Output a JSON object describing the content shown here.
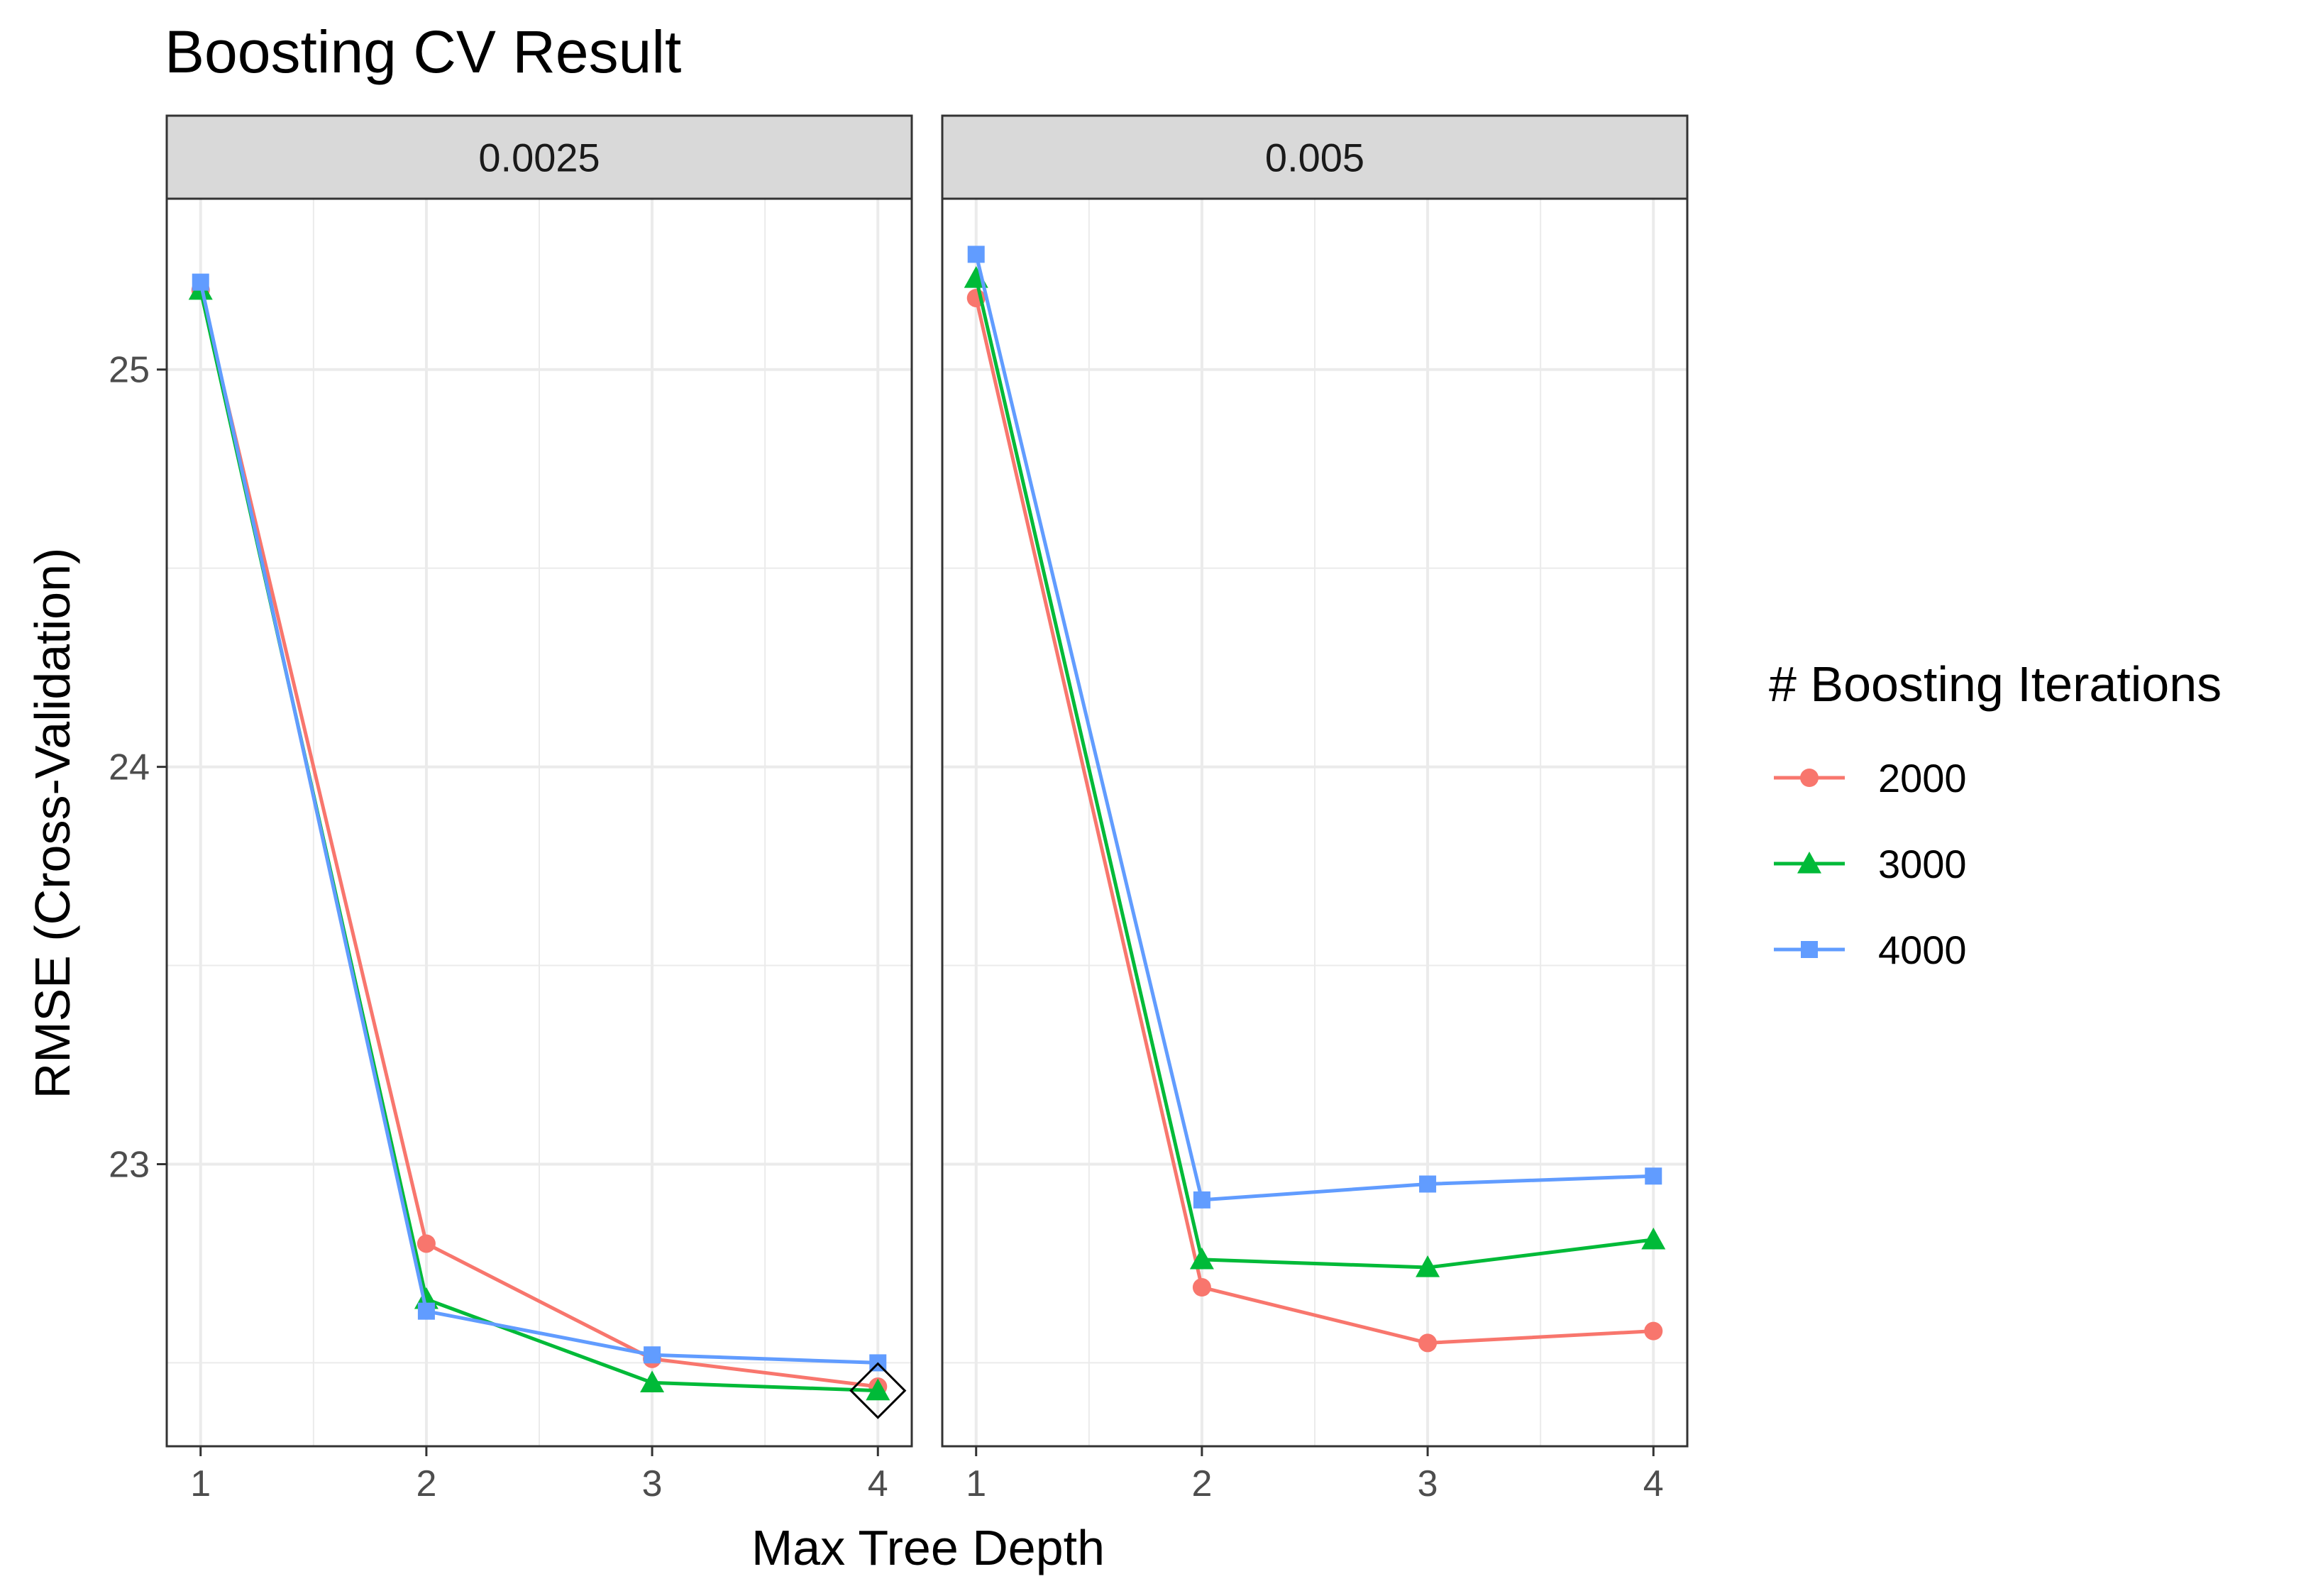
{
  "chart_data": {
    "type": "line",
    "title": "Boosting CV Result",
    "xlabel": "Max Tree Depth",
    "ylabel": "RMSE (Cross-Validation)",
    "x": [
      1,
      2,
      3,
      4
    ],
    "x_ticks": [
      "1",
      "2",
      "3",
      "4"
    ],
    "y_ticks": [
      23,
      24,
      25
    ],
    "ylim": [
      22.29,
      25.43
    ],
    "xlim": [
      0.85,
      4.15
    ],
    "grid": true,
    "legend": {
      "title": "# Boosting Iterations",
      "position": "right"
    },
    "series_styles": [
      {
        "name": "2000",
        "color": "#F8766D",
        "marker": "circle"
      },
      {
        "name": "3000",
        "color": "#00BA38",
        "marker": "triangle"
      },
      {
        "name": "4000",
        "color": "#619CFF",
        "marker": "square"
      }
    ],
    "panels": [
      {
        "label": "0.0025",
        "series": [
          {
            "name": "2000",
            "values": [
              25.2,
              22.8,
              22.51,
              22.44
            ]
          },
          {
            "name": "3000",
            "values": [
              25.2,
              22.66,
              22.45,
              22.43
            ]
          },
          {
            "name": "4000",
            "values": [
              25.22,
              22.63,
              22.52,
              22.5
            ]
          }
        ],
        "highlight": {
          "x": 4,
          "y": 22.43,
          "marker": "diamond"
        }
      },
      {
        "label": "0.005",
        "series": [
          {
            "name": "2000",
            "values": [
              25.18,
              22.69,
              22.55,
              22.58
            ]
          },
          {
            "name": "3000",
            "values": [
              25.23,
              22.76,
              22.74,
              22.81
            ]
          },
          {
            "name": "4000",
            "values": [
              25.29,
              22.91,
              22.95,
              22.97
            ]
          }
        ]
      }
    ]
  }
}
